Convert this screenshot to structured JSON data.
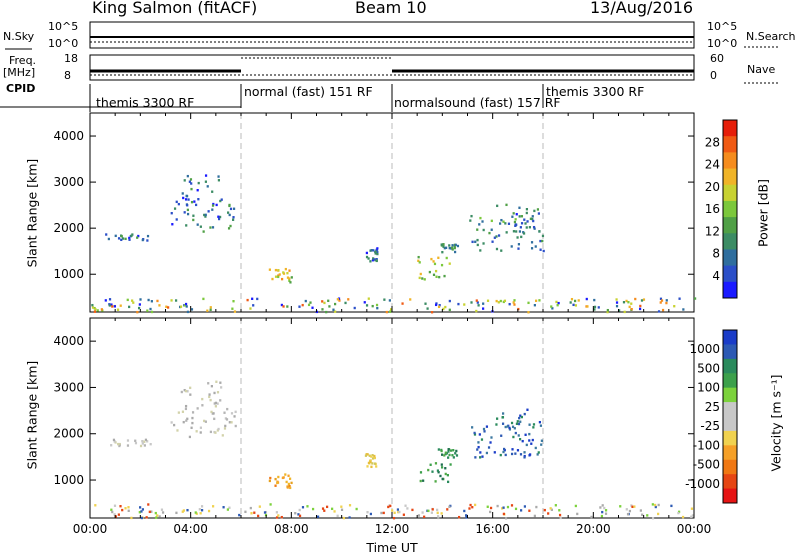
{
  "header": {
    "station": "King Salmon (fitACF)",
    "beam": "Beam 10",
    "date": "13/Aug/2016"
  },
  "strips": {
    "nsky_label": "N.Sky",
    "nsky_ticks": [
      "10^5",
      "10^0"
    ],
    "nsearch_label": "N.Search",
    "nsearch_ticks": [
      "10^5",
      "10^0"
    ],
    "freq_label_1": "Freq.",
    "freq_label_2": "[MHz]",
    "freq_ticks": [
      "18",
      "8"
    ],
    "nave_label": "Nave",
    "nave_ticks": [
      "60",
      "0"
    ],
    "cpid_label": "CPID",
    "cpid_segments": [
      {
        "label": "themis 3300 RF",
        "start": 0,
        "end": 6
      },
      {
        "label": "normal (fast) 151 RF",
        "start": 6,
        "end": 12
      },
      {
        "label": "normalsound (fast) 157 RF",
        "start": 12,
        "end": 18
      },
      {
        "label": "themis 3300 RF",
        "start": 18,
        "end": 24
      }
    ]
  },
  "chart_data": [
    {
      "type": "heatmap",
      "name": "power",
      "ylabel": "Slant Range [km]",
      "ylim": [
        180,
        4500
      ],
      "yticks": [
        "1000",
        "2000",
        "3000",
        "4000"
      ],
      "ytick_values": [
        1000,
        2000,
        3000,
        4000
      ],
      "xlim": [
        0,
        24
      ],
      "colorbar": {
        "label": "Power [dB]",
        "ticks": [
          "4",
          "8",
          "12",
          "16",
          "20",
          "24",
          "28"
        ],
        "colors": [
          "#1a1aff",
          "#2b4fc8",
          "#2f6e9e",
          "#3c8c64",
          "#50a046",
          "#7cc83c",
          "#c8d232",
          "#f0b428",
          "#f58c1e",
          "#f05a14",
          "#e61e0a"
        ]
      },
      "echo_regions": [
        {
          "t0": 0.6,
          "t1": 2.4,
          "r0": 1750,
          "r1": 1900,
          "level": 0.2
        },
        {
          "t0": 3.2,
          "t1": 5.8,
          "r0": 1950,
          "r1": 2600,
          "level": 0.25
        },
        {
          "t0": 3.6,
          "t1": 5.2,
          "r0": 2600,
          "r1": 3200,
          "level": 0.2
        },
        {
          "t0": 7.0,
          "t1": 8.0,
          "r0": 850,
          "r1": 1150,
          "level": 0.6
        },
        {
          "t0": 10.9,
          "t1": 11.4,
          "r0": 1300,
          "r1": 1600,
          "level": 0.25
        },
        {
          "t0": 13.0,
          "t1": 14.3,
          "r0": 900,
          "r1": 1400,
          "level": 0.55
        },
        {
          "t0": 13.8,
          "t1": 14.6,
          "r0": 1500,
          "r1": 1700,
          "level": 0.3
        },
        {
          "t0": 15.0,
          "t1": 18.0,
          "r0": 1500,
          "r1": 2300,
          "level": 0.3
        },
        {
          "t0": 16.1,
          "t1": 17.8,
          "r0": 2100,
          "r1": 2550,
          "level": 0.25
        },
        {
          "t0": 0.0,
          "t1": 24.0,
          "r0": 200,
          "r1": 500,
          "level": 0.35
        }
      ]
    },
    {
      "type": "heatmap",
      "name": "velocity",
      "ylabel": "Slant Range [km]",
      "xlabel": "Time UT",
      "ylim": [
        180,
        4500
      ],
      "yticks": [
        "1000",
        "2000",
        "3000",
        "4000"
      ],
      "ytick_values": [
        1000,
        2000,
        3000,
        4000
      ],
      "xlim": [
        0,
        24
      ],
      "xticks": [
        "00:00",
        "04:00",
        "08:00",
        "12:00",
        "16:00",
        "20:00",
        "00:00"
      ],
      "xtick_values": [
        0,
        4,
        8,
        12,
        16,
        20,
        24
      ],
      "colorbar": {
        "label": "Velocity [m s⁻¹]",
        "ticks": [
          "1000",
          "500",
          "100",
          "25",
          "-25",
          "-100",
          "-500",
          "-1000"
        ],
        "colors": [
          "#1a3cc8",
          "#2d5ab4",
          "#2a8a5c",
          "#3ca04b",
          "#7cd23c",
          "#c8c8c8",
          "#c8c8c8",
          "#f0d250",
          "#f5a028",
          "#f07814",
          "#e64614",
          "#e61414"
        ]
      },
      "echo_regions": [
        {
          "t0": 0.6,
          "t1": 2.4,
          "r0": 1750,
          "r1": 1900,
          "level": "gray"
        },
        {
          "t0": 3.2,
          "t1": 5.8,
          "r0": 1950,
          "r1": 2600,
          "level": "gray"
        },
        {
          "t0": 3.6,
          "t1": 5.2,
          "r0": 2600,
          "r1": 3200,
          "level": "gray"
        },
        {
          "t0": 7.0,
          "t1": 8.0,
          "r0": 850,
          "r1": 1150,
          "level": "orange"
        },
        {
          "t0": 10.9,
          "t1": 11.4,
          "r0": 1300,
          "r1": 1600,
          "level": "yellow"
        },
        {
          "t0": 13.0,
          "t1": 14.3,
          "r0": 900,
          "r1": 1400,
          "level": "green"
        },
        {
          "t0": 13.8,
          "t1": 14.6,
          "r0": 1500,
          "r1": 1700,
          "level": "green"
        },
        {
          "t0": 15.0,
          "t1": 18.0,
          "r0": 1500,
          "r1": 2300,
          "level": "blue"
        },
        {
          "t0": 16.1,
          "t1": 17.8,
          "r0": 2100,
          "r1": 2550,
          "level": "blue"
        },
        {
          "t0": 0.0,
          "t1": 24.0,
          "r0": 200,
          "r1": 500,
          "level": "mixed"
        }
      ]
    }
  ]
}
